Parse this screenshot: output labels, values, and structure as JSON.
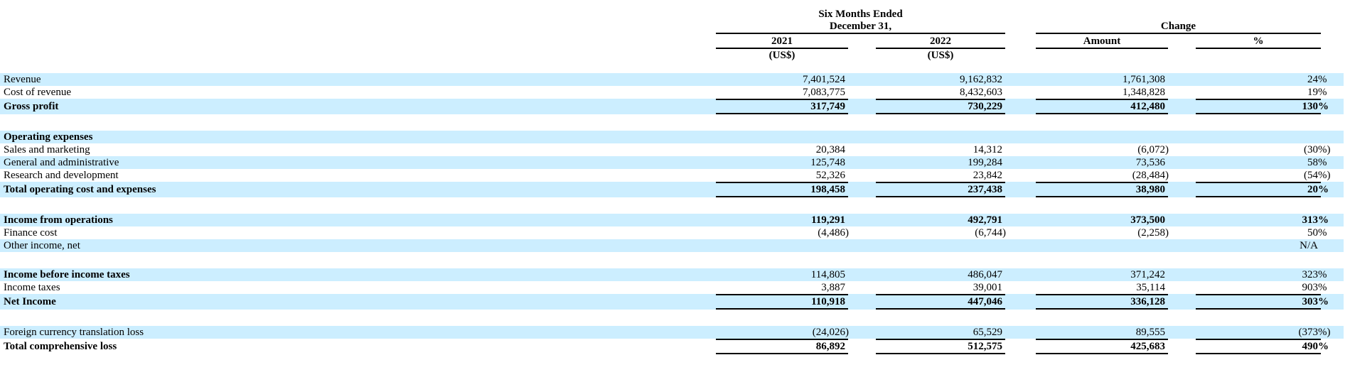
{
  "colors": {
    "stripe": "#cceeff",
    "rule": "#000000",
    "text": "#000000"
  },
  "header": {
    "group_period_line1": "Six Months Ended",
    "group_period_line2": "December 31,",
    "group_change": "Change",
    "col_2021": "2021",
    "col_2022": "2022",
    "col_amount": "Amount",
    "col_pct": "%",
    "currency_note_2021": "(US$)",
    "currency_note_2022": "(US$)"
  },
  "table": {
    "columns": [
      "2021 (US$)",
      "2022 (US$)",
      "Change Amount",
      "Change %"
    ],
    "rows": [
      {
        "label": "Revenue",
        "shade": true,
        "cells": [
          {
            "v": "7,401,524",
            "s": ""
          },
          {
            "v": "9,162,832",
            "s": ""
          },
          {
            "v": "1,761,308",
            "s": ""
          },
          {
            "v": "24",
            "s": "%"
          }
        ]
      },
      {
        "label": "Cost of revenue",
        "cells": [
          {
            "v": "7,083,775",
            "s": ""
          },
          {
            "v": "8,432,603",
            "s": ""
          },
          {
            "v": "1,348,828",
            "s": ""
          },
          {
            "v": "19",
            "s": "%"
          }
        ]
      },
      {
        "label": "Gross profit",
        "shade": true,
        "bold": true,
        "bt": true,
        "bb": true,
        "cells": [
          {
            "v": "317,749",
            "s": ""
          },
          {
            "v": "730,229",
            "s": ""
          },
          {
            "v": "412,480",
            "s": ""
          },
          {
            "v": "130",
            "s": "%"
          }
        ]
      },
      {
        "blank": true
      },
      {
        "label": "Operating expenses",
        "shade": true,
        "bold": true,
        "cells": [
          {
            "v": "",
            "s": ""
          },
          {
            "v": "",
            "s": ""
          },
          {
            "v": "",
            "s": ""
          },
          {
            "v": "",
            "s": ""
          }
        ]
      },
      {
        "label": "Sales and marketing",
        "cells": [
          {
            "v": "20,384",
            "s": ""
          },
          {
            "v": "14,312",
            "s": ""
          },
          {
            "v": "(6,072",
            "s": ")"
          },
          {
            "v": "(30",
            "s": "%)"
          }
        ]
      },
      {
        "label": "General and administrative",
        "shade": true,
        "cells": [
          {
            "v": "125,748",
            "s": ""
          },
          {
            "v": "199,284",
            "s": ""
          },
          {
            "v": "73,536",
            "s": ""
          },
          {
            "v": "58",
            "s": "%"
          }
        ]
      },
      {
        "label": "Research and development",
        "cells": [
          {
            "v": "52,326",
            "s": ""
          },
          {
            "v": "23,842",
            "s": ""
          },
          {
            "v": "(28,484",
            "s": ")"
          },
          {
            "v": "(54",
            "s": "%)"
          }
        ]
      },
      {
        "label": "Total operating cost and expenses",
        "shade": true,
        "bold": true,
        "bt": true,
        "bb": true,
        "cells": [
          {
            "v": "198,458",
            "s": ""
          },
          {
            "v": "237,438",
            "s": ""
          },
          {
            "v": "38,980",
            "s": ""
          },
          {
            "v": "20",
            "s": "%"
          }
        ]
      },
      {
        "blank": true
      },
      {
        "label": "Income from operations",
        "shade": true,
        "bold": true,
        "cells": [
          {
            "v": "119,291",
            "s": ""
          },
          {
            "v": "492,791",
            "s": ""
          },
          {
            "v": "373,500",
            "s": ""
          },
          {
            "v": "313",
            "s": "%"
          }
        ]
      },
      {
        "label": "Finance cost",
        "cells": [
          {
            "v": "(4,486",
            "s": ")"
          },
          {
            "v": "(6,744",
            "s": ")"
          },
          {
            "v": "(2,258",
            "s": ")"
          },
          {
            "v": "50",
            "s": "%"
          }
        ]
      },
      {
        "label": "Other income, net",
        "shade": true,
        "cells": [
          {
            "v": "",
            "s": ""
          },
          {
            "v": "",
            "s": ""
          },
          {
            "v": "",
            "s": ""
          },
          {
            "v": "N/A",
            "s": ""
          }
        ]
      },
      {
        "blank": true
      },
      {
        "label": "Income before income taxes",
        "shade": true,
        "bold_label": true,
        "cells": [
          {
            "v": "114,805",
            "s": ""
          },
          {
            "v": "486,047",
            "s": ""
          },
          {
            "v": "371,242",
            "s": ""
          },
          {
            "v": "323",
            "s": "%"
          }
        ]
      },
      {
        "label": "Income taxes",
        "cells": [
          {
            "v": "3,887",
            "s": ""
          },
          {
            "v": "39,001",
            "s": ""
          },
          {
            "v": "35,114",
            "s": ""
          },
          {
            "v": "903",
            "s": "%"
          }
        ]
      },
      {
        "label": "Net Income",
        "shade": true,
        "bold": true,
        "bt": true,
        "bb": true,
        "cells": [
          {
            "v": "110,918",
            "s": ""
          },
          {
            "v": "447,046",
            "s": ""
          },
          {
            "v": "336,128",
            "s": ""
          },
          {
            "v": "303",
            "s": "%"
          }
        ]
      },
      {
        "blank": true
      },
      {
        "label": "Foreign currency translation loss",
        "shade": true,
        "cells": [
          {
            "v": "(24,026",
            "s": ")"
          },
          {
            "v": "65,529",
            "s": ""
          },
          {
            "v": "89,555",
            "s": ""
          },
          {
            "v": "(373",
            "s": "%)"
          }
        ]
      },
      {
        "label": "Total comprehensive loss",
        "bold": true,
        "bt": true,
        "bb": true,
        "cells": [
          {
            "v": "86,892",
            "s": ""
          },
          {
            "v": "512,575",
            "s": ""
          },
          {
            "v": "425,683",
            "s": ""
          },
          {
            "v": "490",
            "s": "%"
          }
        ]
      }
    ]
  }
}
